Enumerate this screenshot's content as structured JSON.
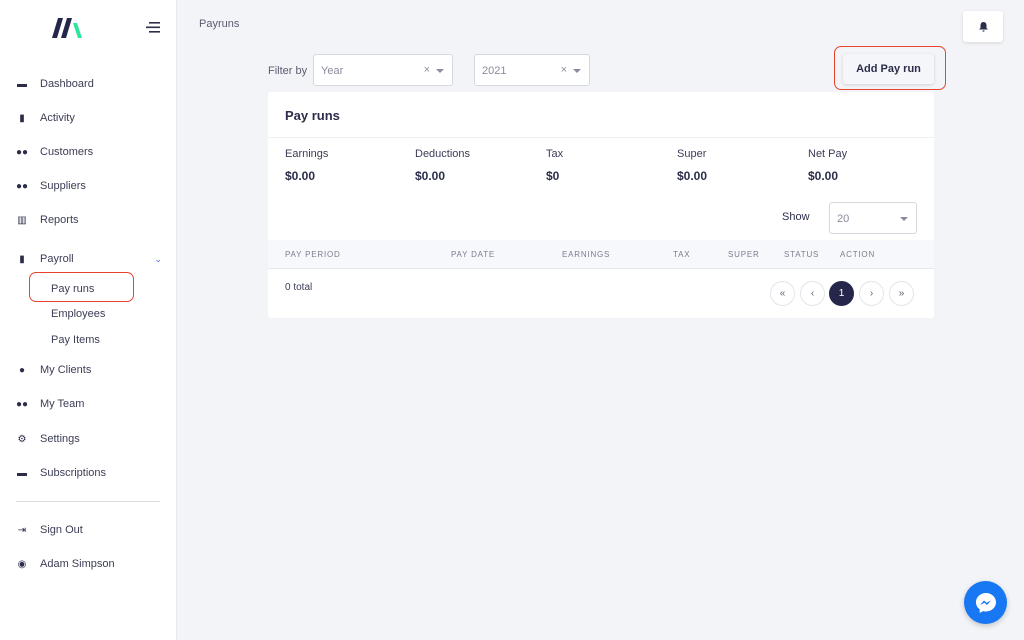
{
  "sidebar": {
    "items": [
      {
        "label": "Dashboard",
        "icon": "store-icon"
      },
      {
        "label": "Activity",
        "icon": "book-icon"
      },
      {
        "label": "Customers",
        "icon": "users-icon"
      },
      {
        "label": "Suppliers",
        "icon": "users-icon"
      },
      {
        "label": "Reports",
        "icon": "chart-icon"
      },
      {
        "label": "Payroll",
        "icon": "file-invoice-icon"
      },
      {
        "label": "My Clients",
        "icon": "user-icon"
      },
      {
        "label": "My Team",
        "icon": "users-icon"
      },
      {
        "label": "Settings",
        "icon": "gear-icon"
      },
      {
        "label": "Subscriptions",
        "icon": "money-icon"
      },
      {
        "label": "Sign Out",
        "icon": "sign-out-icon"
      },
      {
        "label": "Adam Simpson",
        "icon": "user-circle-icon"
      }
    ],
    "payroll_sub": [
      "Pay runs",
      "Employees",
      "Pay Items"
    ]
  },
  "breadcrumb": "Payruns",
  "filter": {
    "label": "Filter by",
    "type_value": "Year",
    "year_value": "2021"
  },
  "add_button": "Add Pay run",
  "card": {
    "title": "Pay runs",
    "stats": [
      {
        "label": "Earnings",
        "value": "$0.00"
      },
      {
        "label": "Deductions",
        "value": "$0.00"
      },
      {
        "label": "Tax",
        "value": "$0"
      },
      {
        "label": "Super",
        "value": "$0.00"
      },
      {
        "label": "Net Pay",
        "value": "$0.00"
      }
    ],
    "show_label": "Show",
    "show_value": "20",
    "columns": [
      "PAY PERIOD",
      "PAY DATE",
      "EARNINGS",
      "TAX",
      "SUPER",
      "STATUS",
      "ACTION"
    ],
    "total": "0 total",
    "pagination": {
      "first": "«",
      "prev": "‹",
      "current": "1",
      "next": "›",
      "last": "»"
    }
  },
  "colors": {
    "accent": "#24264a",
    "highlight": "#e8432f",
    "logo_green": "#2ee59d"
  }
}
